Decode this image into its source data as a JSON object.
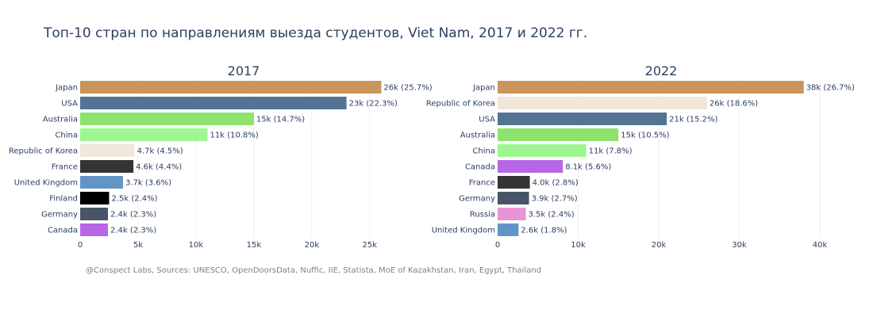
{
  "title": "Топ-10 стран по направлениям выезда студентов, Viet Nam, 2017 и 2022 гг.",
  "footer": "@Conspect Labs, Sources: UNESCO, OpenDoorsData, Nuffic, IIE, Statista, MoE of Kazakhstan, Iran, Egypt, Thailand",
  "chart_data": [
    {
      "type": "bar",
      "orientation": "horizontal",
      "title": "2017",
      "grid": true,
      "xlim": [
        0,
        27000
      ],
      "xticks": [
        0,
        5000,
        10000,
        15000,
        20000,
        25000
      ],
      "xtick_labels": [
        "0",
        "5k",
        "10k",
        "15k",
        "20k",
        "25k"
      ],
      "categories": [
        "Japan",
        "USA",
        "Australia",
        "China",
        "Republic of Korea",
        "France",
        "United Kingdom",
        "Finland",
        "Germany",
        "Canada"
      ],
      "values": [
        26000,
        23000,
        15000,
        11000,
        4700,
        4600,
        3700,
        2500,
        2400,
        2400
      ],
      "labels": [
        "26k (25.7%)",
        "23k (22.3%)",
        "15k (14.7%)",
        "11k (10.8%)",
        "4.7k (4.5%)",
        "4.6k (4.4%)",
        "3.7k (3.6%)",
        "2.5k (2.4%)",
        "2.4k (2.3%)",
        "2.4k (2.3%)"
      ],
      "colors": [
        "#c9955a",
        "#537593",
        "#8ee26e",
        "#9cf88e",
        "#f2e6da",
        "#343434",
        "#6394c7",
        "#000000",
        "#485566",
        "#b766e6"
      ]
    },
    {
      "type": "bar",
      "orientation": "horizontal",
      "title": "2022",
      "grid": true,
      "xlim": [
        0,
        40000
      ],
      "xticks": [
        0,
        10000,
        20000,
        30000,
        40000
      ],
      "xtick_labels": [
        "0",
        "10k",
        "20k",
        "30k",
        "40k"
      ],
      "categories": [
        "Japan",
        "Republic of Korea",
        "USA",
        "Australia",
        "China",
        "Canada",
        "France",
        "Germany",
        "Russia",
        "United Kingdom"
      ],
      "values": [
        38000,
        26000,
        21000,
        15000,
        11000,
        8100,
        4000,
        3900,
        3500,
        2600
      ],
      "labels": [
        "38k (26.7%)",
        "26k (18.6%)",
        "21k (15.2%)",
        "15k (10.5%)",
        "11k (7.8%)",
        "8.1k (5.6%)",
        "4.0k (2.8%)",
        "3.9k (2.7%)",
        "3.5k (2.4%)",
        "2.6k (1.8%)"
      ],
      "colors": [
        "#c9955a",
        "#f2e6da",
        "#537593",
        "#8ee26e",
        "#9cf88e",
        "#b766e6",
        "#343434",
        "#485566",
        "#e895d2",
        "#6394c7"
      ]
    }
  ]
}
